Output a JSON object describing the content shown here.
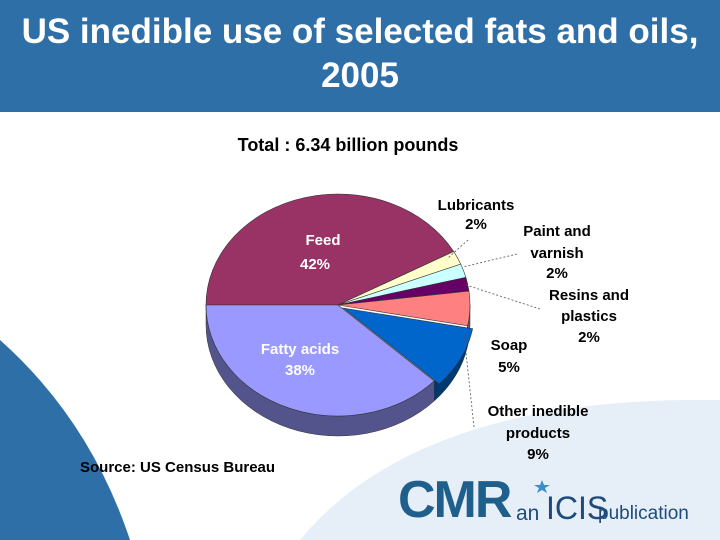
{
  "slide": {
    "title": "US inedible use of selected fats and oils, 2005",
    "source": "Source: US Census Bureau"
  },
  "logo": {
    "brand": "CMR",
    "prefix": "an",
    "name": "ICIS",
    "suffix": "publication"
  },
  "chart_data": {
    "type": "pie",
    "title": "Total : 6.34 billion pounds",
    "slices": [
      {
        "label": "Feed",
        "value": 42,
        "value_label": "42%",
        "color": "#993366"
      },
      {
        "label": "Lubricants",
        "value": 2,
        "value_label": "2%",
        "color": "#ffffcc"
      },
      {
        "label": "Paint and varnish",
        "value": 2,
        "value_label": "2%",
        "color": "#ccffff"
      },
      {
        "label": "Resins and plastics",
        "value": 2,
        "value_label": "2%",
        "color": "#660066"
      },
      {
        "label": "Soap",
        "value": 5,
        "value_label": "5%",
        "color": "#ff8080"
      },
      {
        "label": "Other inedible products",
        "value": 9,
        "value_label": "9%",
        "color": "#0066cc"
      },
      {
        "label": "Fatty acids",
        "value": 38,
        "value_label": "38%",
        "color": "#9999ff"
      }
    ]
  }
}
